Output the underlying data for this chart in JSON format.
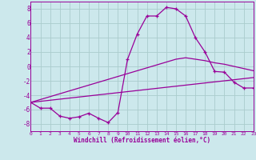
{
  "xlabel": "Windchill (Refroidissement éolien,°C)",
  "background_color": "#cce8ec",
  "line_color": "#990099",
  "grid_color": "#aacccc",
  "hours": [
    0,
    1,
    2,
    3,
    4,
    5,
    6,
    7,
    8,
    9,
    10,
    11,
    12,
    13,
    14,
    15,
    16,
    17,
    18,
    19,
    20,
    21,
    22,
    23
  ],
  "windchill": [
    -5.0,
    -5.8,
    -5.8,
    -6.9,
    -7.2,
    -7.0,
    -6.5,
    -7.2,
    -7.8,
    -6.4,
    1.0,
    4.5,
    7.0,
    7.0,
    8.2,
    8.0,
    7.0,
    4.0,
    2.0,
    -0.7,
    -0.8,
    -2.2,
    -3.0,
    -3.0
  ],
  "trend1": [
    -5.0,
    -4.85,
    -4.7,
    -4.55,
    -4.4,
    -4.25,
    -4.1,
    -3.95,
    -3.8,
    -3.65,
    -3.5,
    -3.35,
    -3.2,
    -3.05,
    -2.9,
    -2.75,
    -2.6,
    -2.45,
    -2.3,
    -2.15,
    -2.0,
    -1.85,
    -1.7,
    -1.55
  ],
  "trend2": [
    -5.0,
    -4.6,
    -4.2,
    -3.8,
    -3.4,
    -3.0,
    -2.6,
    -2.2,
    -1.8,
    -1.4,
    -1.0,
    -0.6,
    -0.2,
    0.2,
    0.6,
    1.0,
    1.2,
    1.0,
    0.8,
    0.5,
    0.3,
    0.0,
    -0.3,
    -0.6
  ],
  "ylim": [
    -9,
    9
  ],
  "xlim": [
    0,
    23
  ],
  "yticks": [
    -8,
    -6,
    -4,
    -2,
    0,
    2,
    4,
    6,
    8
  ],
  "xticks": [
    0,
    1,
    2,
    3,
    4,
    5,
    6,
    7,
    8,
    9,
    10,
    11,
    12,
    13,
    14,
    15,
    16,
    17,
    18,
    19,
    20,
    21,
    22,
    23
  ]
}
